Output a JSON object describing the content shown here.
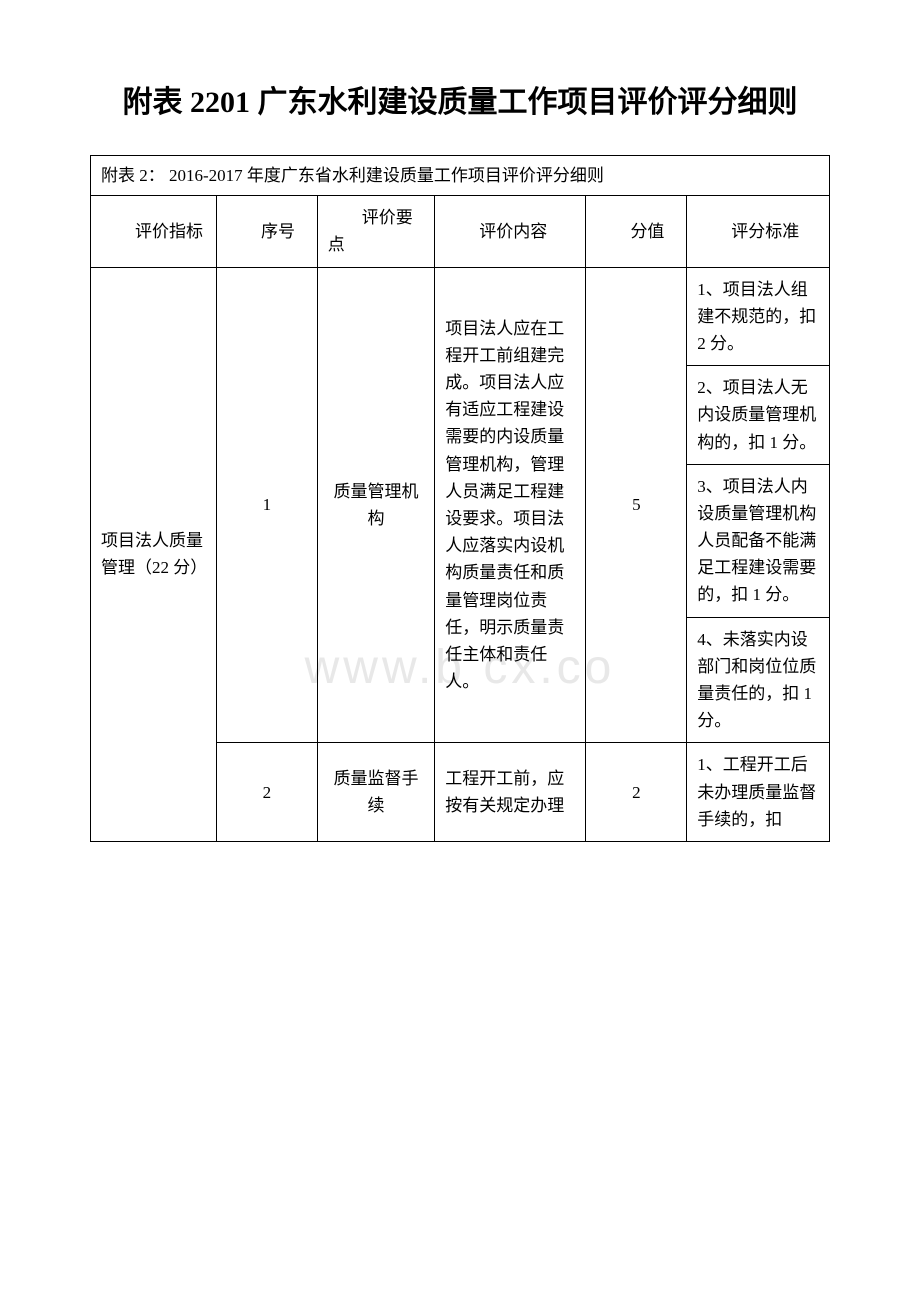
{
  "title": "附表 2201 广东水利建设质量工作项目评价评分细则",
  "watermark": "www.b    cx.co",
  "table": {
    "caption": "附表 2：  2016-2017 年度广东省水利建设质量工作项目评价评分细则",
    "headers": {
      "indicator": "评价指标",
      "seq": "序号",
      "point": "评价要点",
      "content": "评价内容",
      "score": "分值",
      "standard": "评分标准"
    },
    "rows": [
      {
        "indicator": "项目法人质量管理（22 分）",
        "seq": "1",
        "point": "质量管理机构",
        "content": "项目法人应在工程开工前组建完成。项目法人应有适应工程建设需要的内设质量管理机构，管理人员满足工程建设要求。项目法人应落实内设机构质量责任和质量管理岗位责任，明示质量责任主体和责任人。",
        "score": "5",
        "standards": [
          "1、项目法人组建不规范的，扣 2 分。",
          "2、项目法人无内设质量管理机构的，扣 1 分。",
          "3、项目法人内设质量管理机构人员配备不能满足工程建设需要的，扣 1 分。",
          "4、未落实内设部门和岗位位质量责任的，扣 1 分。"
        ]
      },
      {
        "seq": "2",
        "point": "质量监督手续",
        "content": "工程开工前，应按有关规定办理",
        "score": "2",
        "standards": [
          "1、工程开工后未办理质量监督手续的，扣"
        ]
      }
    ]
  }
}
